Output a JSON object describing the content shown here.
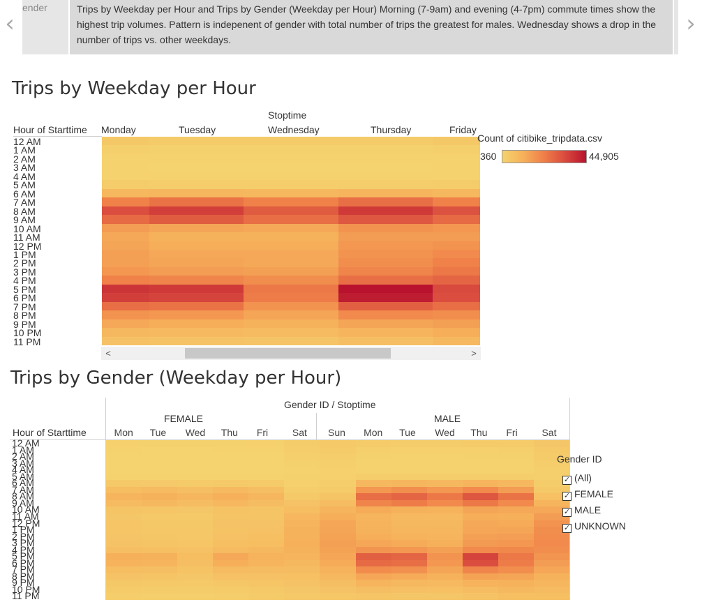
{
  "story": {
    "prev_point_label": "ender",
    "current_caption": "Trips by Weekday per Hour and Trips by Gender (Weekday per Hour)  Morning (7-9am) and evening (4-7pm) commute times show the highest trip volumes.  Pattern is indepenent of gender with total number of trips the greatest for males.  Wednesday shows a drop in the number of trips vs. other weekdays.",
    "prev_arrow": "‹",
    "next_arrow": "›"
  },
  "chart1": {
    "title": "Trips by Weekday per Hour",
    "column_header_title": "Stoptime",
    "row_header_title": "Hour of Starttime",
    "scroll_left": "<",
    "scroll_right": ">"
  },
  "legend": {
    "title": "Count of citibike_tripdata.csv",
    "min": "360",
    "max": "44,905",
    "color_min": "#f5d36e",
    "color_max": "#b8122e"
  },
  "chart2": {
    "title": "Trips by Gender (Weekday per Hour)",
    "column_header_title": "Gender ID / Stoptime",
    "row_header_title": "Hour of Starttime",
    "group_female": "FEMALE",
    "group_male": "MALE"
  },
  "filter": {
    "title": "Gender ID",
    "items": [
      {
        "label": "(All)",
        "checked": "✓"
      },
      {
        "label": "FEMALE",
        "checked": "✓"
      },
      {
        "label": "MALE",
        "checked": "✓"
      },
      {
        "label": "UNKNOWN",
        "checked": "✓"
      }
    ]
  },
  "chart_data": [
    {
      "type": "heatmap",
      "title": "Trips by Weekday per Hour",
      "xlabel": "Stoptime",
      "ylabel": "Hour of Starttime",
      "x": [
        "Monday",
        "Tuesday",
        "Wednesday",
        "Thursday",
        "Friday"
      ],
      "y": [
        "12 AM",
        "1 AM",
        "2 AM",
        "3 AM",
        "4 AM",
        "5 AM",
        "6 AM",
        "7 AM",
        "8 AM",
        "9 AM",
        "10 AM",
        "11 AM",
        "12 PM",
        "1 PM",
        "2 PM",
        "3 PM",
        "4 PM",
        "5 PM",
        "6 PM",
        "7 PM",
        "8 PM",
        "9 PM",
        "10 PM",
        "11 PM"
      ],
      "x_width_units": [
        1,
        2,
        2,
        2,
        1
      ],
      "values": [
        [
          4000,
          3000,
          3000,
          3000,
          4000
        ],
        [
          1500,
          1000,
          1000,
          1000,
          1500
        ],
        [
          800,
          600,
          600,
          600,
          800
        ],
        [
          600,
          500,
          500,
          500,
          600
        ],
        [
          700,
          600,
          600,
          600,
          700
        ],
        [
          2500,
          2300,
          2300,
          2400,
          2500
        ],
        [
          9000,
          9500,
          9000,
          9800,
          9000
        ],
        [
          22000,
          25000,
          22000,
          26000,
          22000
        ],
        [
          33000,
          36000,
          30000,
          37000,
          32000
        ],
        [
          27000,
          30000,
          26000,
          31000,
          27000
        ],
        [
          16000,
          14000,
          13000,
          18000,
          17000
        ],
        [
          13000,
          11000,
          11000,
          16000,
          16000
        ],
        [
          14000,
          12000,
          12000,
          17000,
          18000
        ],
        [
          15000,
          13000,
          13000,
          18000,
          20000
        ],
        [
          15000,
          14000,
          13000,
          19000,
          22000
        ],
        [
          17000,
          16000,
          15000,
          21000,
          24000
        ],
        [
          22000,
          21000,
          19000,
          26000,
          28000
        ],
        [
          38000,
          37000,
          24000,
          44905,
          34000
        ],
        [
          36000,
          35000,
          23000,
          43000,
          33000
        ],
        [
          26000,
          25000,
          18000,
          29000,
          26000
        ],
        [
          18000,
          17000,
          14000,
          20000,
          19000
        ],
        [
          13000,
          12000,
          11000,
          14000,
          15000
        ],
        [
          9000,
          8500,
          8000,
          10000,
          12000
        ],
        [
          6000,
          5500,
          5000,
          7000,
          9000
        ]
      ],
      "colorbar": {
        "min": 360,
        "max": 44905,
        "label": "Count of citibike_tripdata.csv"
      }
    },
    {
      "type": "heatmap",
      "title": "Trips by Gender (Weekday per Hour)",
      "xlabel": "Gender ID / Stoptime",
      "ylabel": "Hour of Starttime",
      "groups": [
        "FEMALE",
        "MALE"
      ],
      "x": [
        "Mon",
        "Tue",
        "Wed",
        "Thu",
        "Fri",
        "Sat",
        "Sun",
        "Mon",
        "Tue",
        "Wed",
        "Thu",
        "Fri",
        "Sat"
      ],
      "x_group": [
        "FEMALE",
        "FEMALE",
        "FEMALE",
        "FEMALE",
        "FEMALE",
        "FEMALE",
        "MALE",
        "MALE",
        "MALE",
        "MALE",
        "MALE",
        "MALE",
        "MALE"
      ],
      "y": [
        "12 AM",
        "1 AM",
        "2 AM",
        "3 AM",
        "4 AM",
        "5 AM",
        "6 AM",
        "7 AM",
        "8 AM",
        "9 AM",
        "10 AM",
        "11 AM",
        "12 PM",
        "1 PM",
        "2 PM",
        "3 PM",
        "4 PM",
        "5 PM",
        "6 PM",
        "7 PM",
        "8 PM",
        "9 PM",
        "10 PM",
        "11 PM"
      ],
      "values": [
        [
          1200,
          1000,
          1000,
          1100,
          1200,
          2500,
          3500,
          3000,
          2700,
          2600,
          2800,
          3200,
          4500
        ],
        [
          600,
          500,
          500,
          550,
          600,
          2000,
          2800,
          1500,
          1300,
          1300,
          1400,
          1700,
          3500
        ],
        [
          400,
          300,
          300,
          350,
          400,
          1500,
          2200,
          900,
          800,
          800,
          900,
          1100,
          2800
        ],
        [
          300,
          250,
          250,
          300,
          350,
          1100,
          1700,
          700,
          600,
          600,
          700,
          800,
          2200
        ],
        [
          300,
          250,
          250,
          300,
          300,
          800,
          1200,
          700,
          600,
          600,
          700,
          700,
          1500
        ],
        [
          800,
          700,
          700,
          750,
          800,
          900,
          1400,
          2400,
          2300,
          2300,
          2400,
          2300,
          1500
        ],
        [
          3500,
          3400,
          3300,
          3600,
          3300,
          1400,
          2000,
          9000,
          9500,
          9000,
          9800,
          8800,
          2600
        ],
        [
          7500,
          8200,
          7200,
          8500,
          7200,
          2200,
          3200,
          17000,
          19000,
          17000,
          20000,
          16000,
          3800
        ],
        [
          10000,
          11000,
          9500,
          11500,
          9500,
          3600,
          5200,
          26000,
          28000,
          24000,
          31000,
          25000,
          6500
        ],
        [
          8200,
          8800,
          7800,
          9200,
          7800,
          5500,
          7600,
          21000,
          23000,
          20000,
          24000,
          20000,
          9800
        ],
        [
          5200,
          4700,
          4500,
          5800,
          5200,
          7500,
          10000,
          12500,
          11000,
          10500,
          14000,
          13000,
          13000
        ],
        [
          4400,
          3700,
          3700,
          5200,
          5200,
          9200,
          12000,
          10000,
          8500,
          8500,
          12000,
          11500,
          16000
        ],
        [
          4700,
          4000,
          4000,
          5500,
          5600,
          10200,
          13500,
          10500,
          9000,
          9000,
          13000,
          12500,
          18000
        ],
        [
          4900,
          4200,
          4200,
          5800,
          6200,
          10800,
          14000,
          11000,
          9500,
          9500,
          13500,
          14000,
          19000
        ],
        [
          5000,
          4600,
          4300,
          6000,
          6800,
          11000,
          14500,
          12000,
          10500,
          10000,
          15000,
          15500,
          19500
        ],
        [
          5600,
          5200,
          4800,
          6800,
          7500,
          11500,
          15000,
          13500,
          12500,
          11500,
          16500,
          17000,
          20000
        ],
        [
          7200,
          6800,
          6000,
          8300,
          9000,
          11000,
          14500,
          17500,
          17000,
          15000,
          20000,
          20500,
          19000
        ],
        [
          11500,
          11000,
          7500,
          13000,
          10500,
          10000,
          13500,
          29000,
          28000,
          18000,
          35000,
          24000,
          17500
        ],
        [
          10500,
          10000,
          7200,
          12000,
          10000,
          9000,
          12500,
          27000,
          26000,
          17000,
          33000,
          23000,
          16000
        ],
        [
          7500,
          7000,
          5800,
          8200,
          7800,
          7800,
          10500,
          19500,
          18500,
          14000,
          21000,
          19000,
          13500
        ],
        [
          5500,
          5200,
          4500,
          6000,
          6000,
          6500,
          8800,
          13500,
          12500,
          11000,
          14500,
          14000,
          11000
        ],
        [
          4000,
          3800,
          3500,
          4300,
          4700,
          5500,
          7000,
          10000,
          9000,
          8500,
          10500,
          11000,
          9500
        ],
        [
          2800,
          2600,
          2500,
          3000,
          3600,
          4500,
          5500,
          7200,
          6700,
          6500,
          7800,
          8800,
          8000
        ],
        [
          1900,
          1700,
          1600,
          2100,
          2800,
          3800,
          4200,
          4900,
          4500,
          4500,
          5500,
          6800,
          6800
        ]
      ]
    }
  ]
}
